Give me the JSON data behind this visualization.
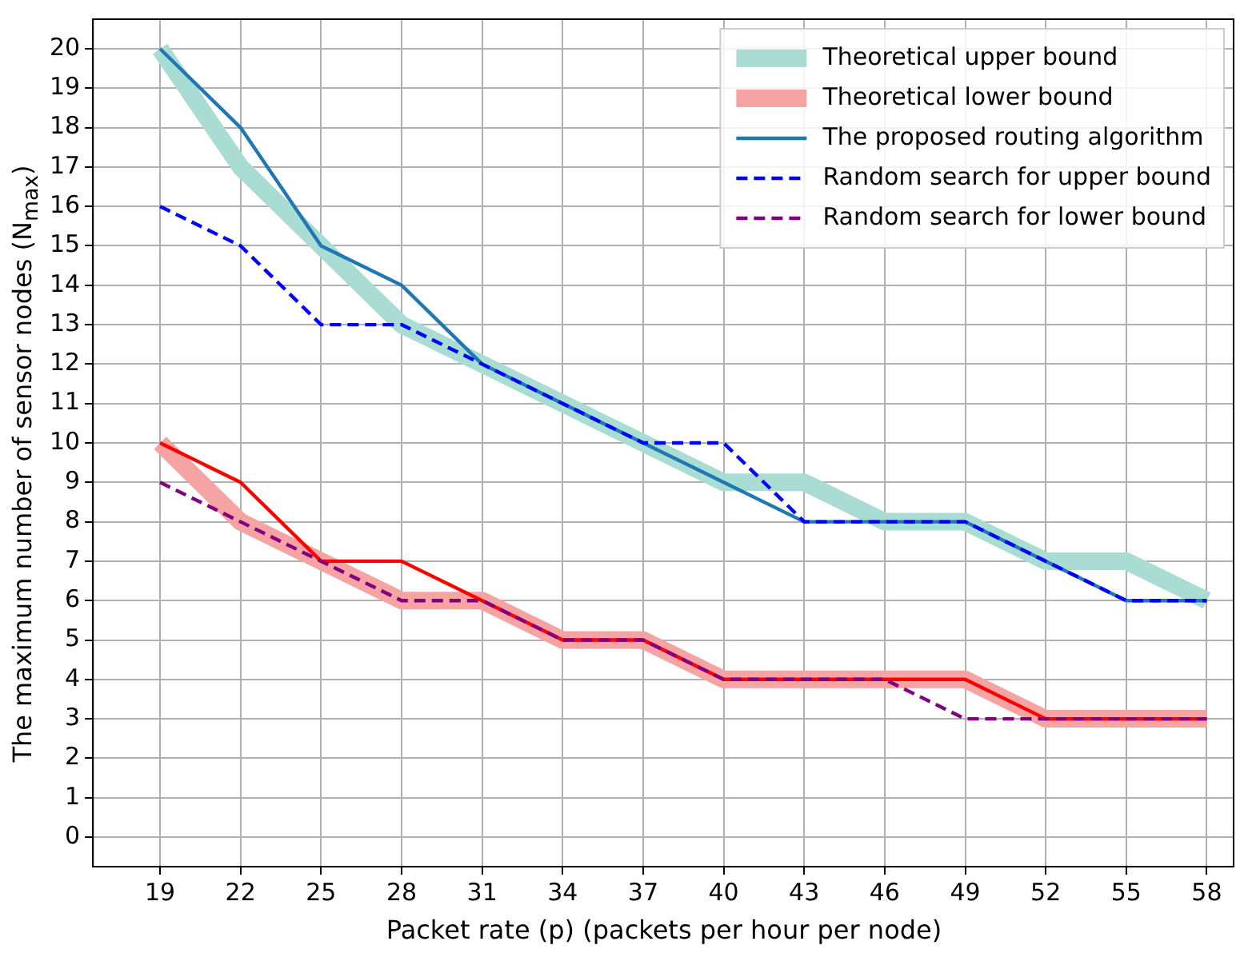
{
  "chart_data": {
    "type": "line",
    "xlabel": "Packet rate (p) (packets per hour per node)",
    "ylabel": "The maximum number of sensor nodes (N$_{max}$)",
    "x": [
      19,
      22,
      25,
      28,
      31,
      34,
      37,
      40,
      43,
      46,
      49,
      52,
      55,
      58
    ],
    "xlim": [
      16.5,
      59
    ],
    "xticks": [
      19,
      22,
      25,
      28,
      31,
      34,
      37,
      40,
      43,
      46,
      49,
      52,
      55,
      58
    ],
    "ylim": [
      -0.75,
      20.75
    ],
    "yticks": [
      0,
      1,
      2,
      3,
      4,
      5,
      6,
      7,
      8,
      9,
      10,
      11,
      12,
      13,
      14,
      15,
      16,
      17,
      18,
      19,
      20
    ],
    "grid": true,
    "legend": "top right",
    "marker": "none",
    "series": [
      {
        "name": "Theoretical upper bound",
        "color": "#a9ddd3",
        "values": [
          20,
          17,
          15,
          13,
          12,
          11,
          10,
          9,
          9,
          8,
          8,
          7,
          7,
          6
        ]
      },
      {
        "name": "Theoretical lower bound",
        "color": "#f5a3a3",
        "values": [
          10,
          8,
          7,
          6,
          6,
          5,
          5,
          4,
          4,
          4,
          4,
          3,
          3,
          3
        ]
      },
      {
        "name": "The proposed routing algorithm",
        "color": "#1f77b4",
        "values": [
          20,
          18,
          15,
          14,
          12,
          11,
          10,
          9,
          8,
          8,
          8,
          7,
          6,
          6
        ]
      },
      {
        "color": "#ff0000",
        "values": [
          10,
          9,
          7,
          7,
          6,
          5,
          5,
          4,
          4,
          4,
          4,
          3,
          3,
          3
        ]
      },
      {
        "name": "Random search for upper bound",
        "color": "#0000ff",
        "line_style": "dashed",
        "values": [
          16,
          15,
          13,
          13,
          12,
          11,
          10,
          10,
          8,
          8,
          8,
          7,
          6,
          6
        ]
      },
      {
        "name": "Random search for lower bound",
        "color": "#800080",
        "line_style": "dashed",
        "values": [
          9,
          8,
          7,
          6,
          6,
          5,
          5,
          4,
          4,
          4,
          3,
          3,
          3,
          3
        ]
      }
    ]
  }
}
